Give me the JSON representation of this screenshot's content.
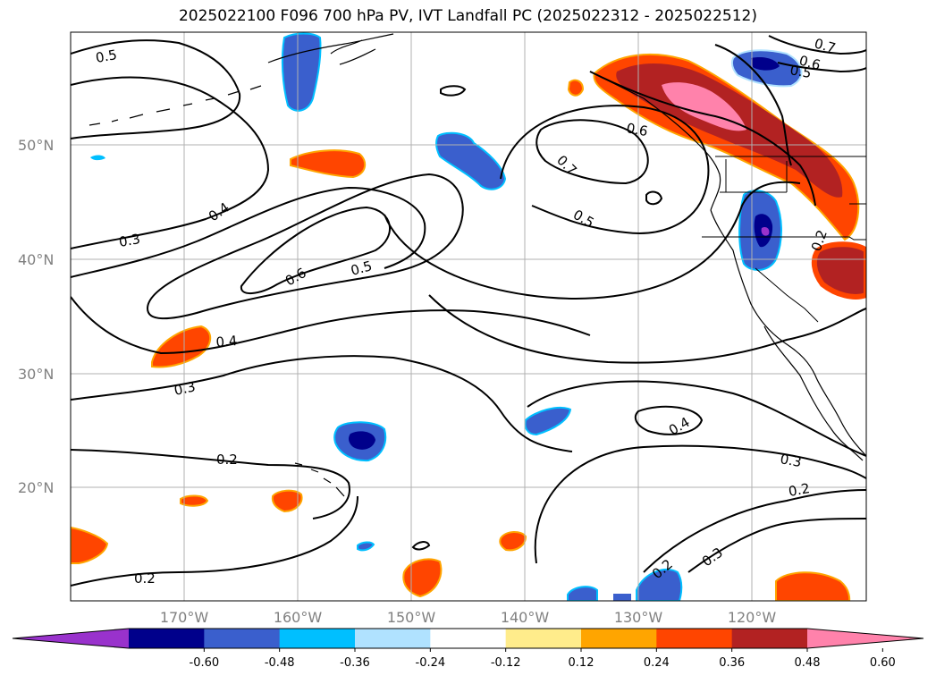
{
  "title": "2025022100 F096 700 hPa PV, IVT Landfall PC (2025022312 - 2025022512)",
  "lat_labels": [
    "50°N",
    "40°N",
    "30°N",
    "20°N"
  ],
  "lon_labels": [
    "170°W",
    "160°W",
    "150°W",
    "140°W",
    "130°W",
    "120°W"
  ],
  "contour_labels": [
    "0.5",
    "0.7",
    "0.6",
    "0.5",
    "0.4",
    "0.3",
    "0.6",
    "0.5",
    "0.7",
    "0.6",
    "0.5",
    "0.4",
    "0.3",
    "0.2",
    "0.4",
    "0.3",
    "0.2",
    "0.2",
    "0.2",
    "0.3",
    "0.2"
  ],
  "colorbar": {
    "ticks": [
      "-0.60",
      "-0.48",
      "-0.36",
      "-0.24",
      "-0.12",
      "0.12",
      "0.24",
      "0.36",
      "0.48",
      "0.60"
    ],
    "colors": [
      "#9932cc",
      "#00008b",
      "#3a5fcd",
      "#00bfff",
      "#b0e2ff",
      "#ffffff",
      "#ffec8b",
      "#ffa500",
      "#ff4500",
      "#b22222",
      "#ff82ab"
    ]
  }
}
